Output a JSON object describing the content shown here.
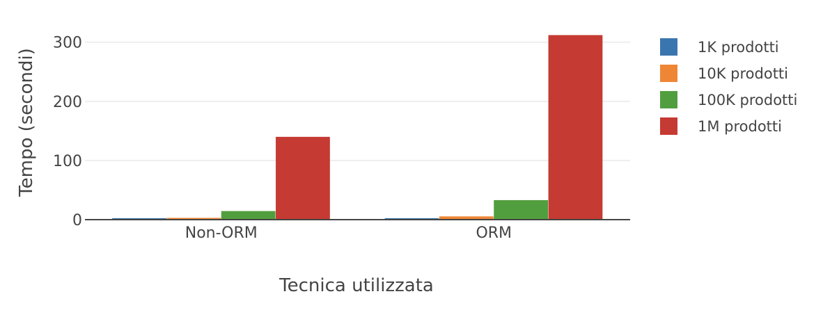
{
  "chart_data": {
    "type": "bar",
    "categories": [
      "Non-ORM",
      "ORM"
    ],
    "series": [
      {
        "name": "1K prodotti",
        "color": "#3b75af",
        "values": [
          2.5,
          2.5
        ]
      },
      {
        "name": "10K prodotti",
        "color": "#ef8636",
        "values": [
          3,
          5.5
        ]
      },
      {
        "name": "100K prodotti",
        "color": "#519e3e",
        "values": [
          14.5,
          33
        ]
      },
      {
        "name": "1M prodotti",
        "color": "#c53a32",
        "values": [
          140,
          312
        ]
      }
    ],
    "xlabel": "Tecnica utilizzata",
    "ylabel": "Tempo (secondi)",
    "ylim": [
      0,
      322
    ],
    "yticks": [
      "0",
      "100",
      "200",
      "300"
    ],
    "ytick_values": [
      0,
      100,
      200,
      300
    ],
    "grid": true,
    "legend_position": "right"
  }
}
